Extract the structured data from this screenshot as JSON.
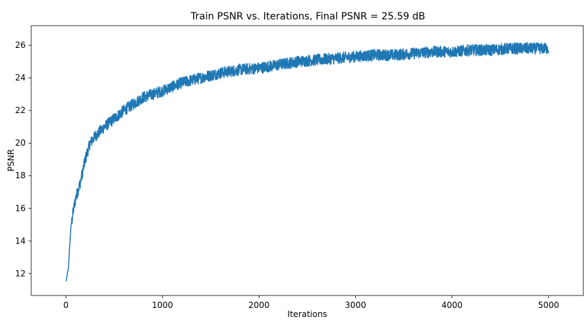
{
  "chart_data": {
    "type": "line",
    "title": "Train PSNR vs. Iterations, Final PSNR = 25.59 dB",
    "xlabel": "Iterations",
    "ylabel": "PSNR",
    "xlim": [
      -360,
      5360
    ],
    "ylim": [
      10.65,
      27.2
    ],
    "x_ticks": [
      0,
      1000,
      2000,
      3000,
      4000,
      5000
    ],
    "x_tick_labels": [
      "0",
      "1000",
      "2000",
      "3000",
      "4000",
      "5000"
    ],
    "y_ticks": [
      12,
      14,
      16,
      18,
      20,
      22,
      24,
      26
    ],
    "y_tick_labels": [
      "12",
      "14",
      "16",
      "18",
      "20",
      "22",
      "24",
      "26"
    ],
    "grid": false,
    "series": [
      {
        "color": "#1f77b4",
        "x": [
          0,
          25,
          50,
          75,
          100,
          150,
          200,
          250,
          300,
          400,
          500,
          600,
          700,
          800,
          900,
          1000,
          1200,
          1400,
          1600,
          1800,
          2000,
          2200,
          2400,
          2600,
          2800,
          3000,
          3200,
          3400,
          3600,
          3800,
          4000,
          4200,
          4400,
          4600,
          4800,
          5000
        ],
        "y": [
          11.5,
          12.3,
          14.8,
          15.8,
          16.6,
          17.6,
          19.0,
          20.0,
          20.4,
          21.0,
          21.5,
          22.0,
          22.4,
          22.8,
          23.0,
          23.2,
          23.7,
          24.0,
          24.3,
          24.5,
          24.6,
          24.8,
          25.0,
          25.1,
          25.2,
          25.3,
          25.4,
          25.4,
          25.5,
          25.6,
          25.6,
          25.7,
          25.7,
          25.8,
          25.8,
          25.8
        ]
      }
    ],
    "noise_amplitude_db": 0.35
  }
}
